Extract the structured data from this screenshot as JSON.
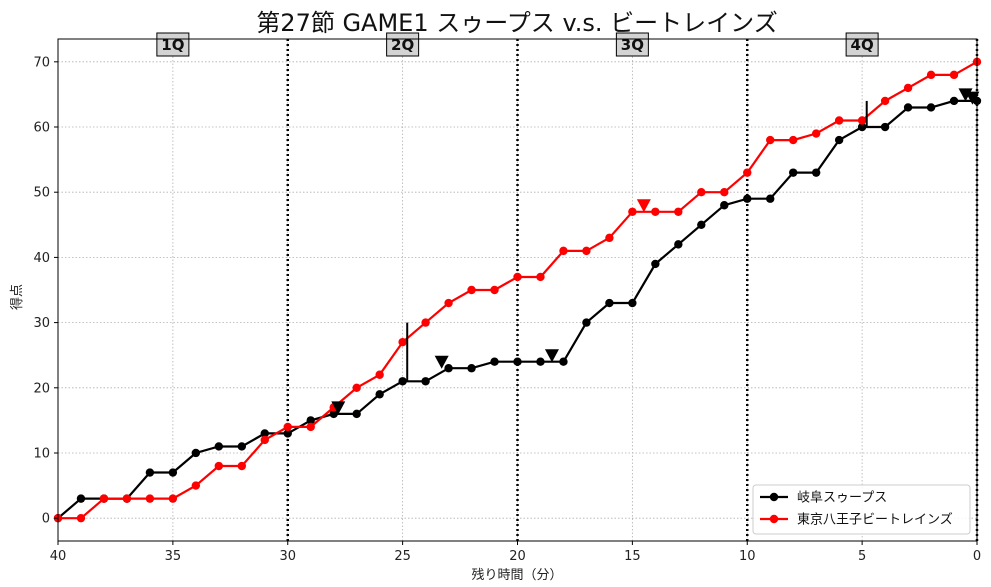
{
  "chart_data": {
    "type": "line",
    "title": "第27節 GAME1 スゥープス v.s. ビートレインズ",
    "xlabel": "残り時間（分）",
    "ylabel": "得点",
    "xlim": [
      40,
      0
    ],
    "ylim": [
      -3.5,
      73.5
    ],
    "x_ticks": [
      40,
      35,
      30,
      25,
      20,
      15,
      10,
      5,
      0
    ],
    "y_ticks": [
      0,
      10,
      20,
      30,
      40,
      50,
      60,
      70
    ],
    "grid": true,
    "legend_position": "lower-right",
    "quarter_lines": [
      30,
      20,
      10,
      0
    ],
    "quarters": [
      {
        "label": "1Q",
        "x": 35
      },
      {
        "label": "2Q",
        "x": 25
      },
      {
        "label": "3Q",
        "x": 15
      },
      {
        "label": "4Q",
        "x": 5
      }
    ],
    "x": [
      40,
      39,
      38,
      37,
      36,
      35,
      34,
      33,
      32,
      31,
      30,
      29,
      28,
      27,
      26,
      25,
      24,
      23,
      22,
      21,
      20,
      19,
      18,
      17,
      16,
      15,
      14,
      13,
      12,
      11,
      10,
      9,
      8,
      7,
      6,
      5,
      4,
      3,
      2,
      1,
      0
    ],
    "series": [
      {
        "name": "岐阜スゥープス",
        "color": "#000000",
        "values": [
          0,
          3,
          3,
          3,
          7,
          7,
          10,
          11,
          11,
          13,
          13,
          15,
          16,
          16,
          19,
          21,
          21,
          23,
          23,
          24,
          24,
          24,
          24,
          30,
          33,
          33,
          39,
          42,
          45,
          48,
          49,
          49,
          53,
          53,
          58,
          60,
          60,
          63,
          63,
          64,
          64
        ]
      },
      {
        "name": "東京八王子ビートレインズ",
        "color": "#ff0000",
        "values": [
          0,
          0,
          3,
          3,
          3,
          3,
          5,
          8,
          8,
          12,
          14,
          14,
          17,
          20,
          22,
          27,
          30,
          33,
          35,
          35,
          37,
          37,
          41,
          41,
          43,
          47,
          47,
          47,
          50,
          50,
          53,
          58,
          58,
          59,
          61,
          61,
          64,
          66,
          68,
          68,
          70
        ]
      }
    ],
    "timeouts": [
      {
        "team": "岐阜スゥープス",
        "x": 27.8,
        "y": 17,
        "color": "#000000"
      },
      {
        "team": "岐阜スゥープス",
        "x": 23.3,
        "y": 24,
        "color": "#000000"
      },
      {
        "team": "岐阜スゥープス",
        "x": 18.5,
        "y": 25,
        "color": "#000000"
      },
      {
        "team": "岐阜スゥープス",
        "x": 0.5,
        "y": 65,
        "color": "#000000"
      },
      {
        "team": "岐阜スゥープス",
        "x": 0.2,
        "y": 64.5,
        "color": "#000000"
      },
      {
        "team": "東京八王子ビートレインズ",
        "x": 14.5,
        "y": 48,
        "color": "#ff0000"
      }
    ],
    "vertical_markers": [
      {
        "x": 24.8,
        "y_from": 21,
        "y_to": 30
      },
      {
        "x": 4.8,
        "y_from": 60,
        "y_to": 64
      }
    ]
  }
}
